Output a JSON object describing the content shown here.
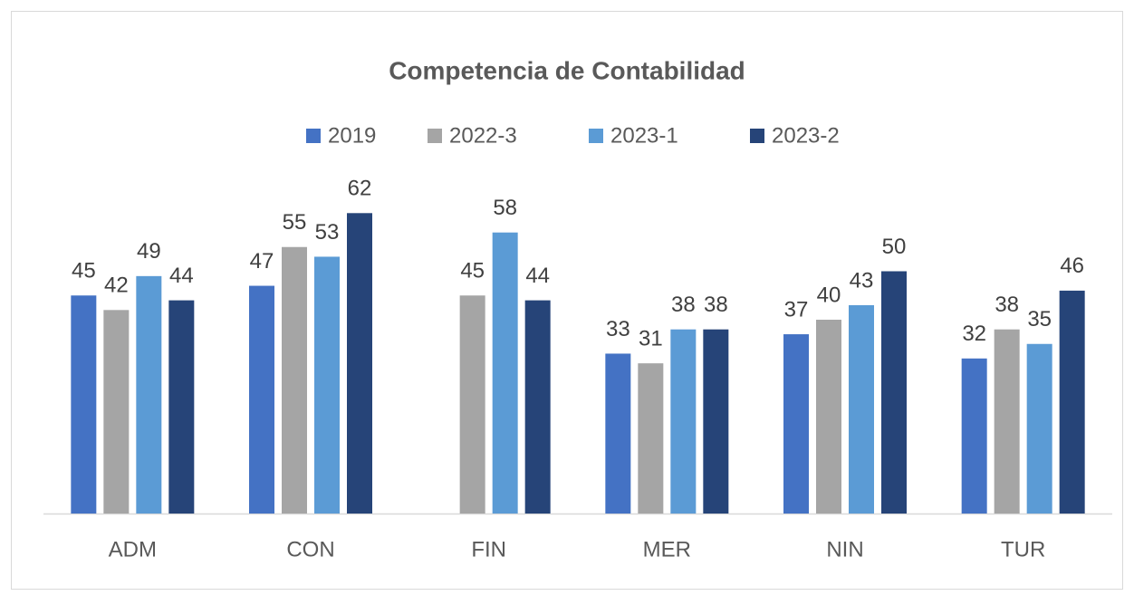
{
  "chart_data": {
    "type": "bar",
    "title": "Competencia de Contabilidad",
    "categories": [
      "ADM",
      "CON",
      "FIN",
      "MER",
      "NIN",
      "TUR"
    ],
    "series": [
      {
        "name": "2019",
        "color": "#4472c4",
        "values": [
          45,
          47,
          null,
          33,
          37,
          32
        ]
      },
      {
        "name": "2022-3",
        "color": "#a5a5a5",
        "values": [
          42,
          55,
          45,
          31,
          40,
          38
        ]
      },
      {
        "name": "2023-1",
        "color": "#5b9bd5",
        "values": [
          49,
          53,
          58,
          38,
          43,
          35
        ]
      },
      {
        "name": "2023-2",
        "color": "#264478",
        "values": [
          44,
          62,
          44,
          38,
          50,
          46
        ]
      }
    ]
  }
}
